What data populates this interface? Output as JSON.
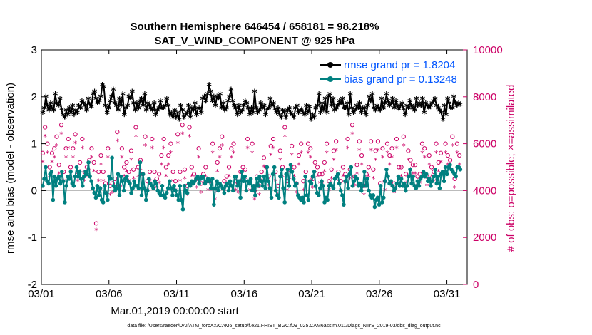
{
  "chart_data": {
    "type": "line",
    "title_line1": "Southern Hemisphere 646454 / 658181 = 98.218%",
    "title_line2": "SAT_V_WIND_COMPONENT @ 925 hPa",
    "xlabel": "Mar.01,2019 00:00:00 start",
    "ylabel": "rmse and bias (model - observation)",
    "ylabel_right": "# of obs: o=possible; ×=assimilated",
    "xlim": [
      0,
      31.5
    ],
    "ylim": [
      -2,
      3
    ],
    "ylim_right": [
      0,
      10000
    ],
    "x_ticks": [
      {
        "v": 0,
        "label": "03/01"
      },
      {
        "v": 5,
        "label": "03/06"
      },
      {
        "v": 10,
        "label": "03/11"
      },
      {
        "v": 15,
        "label": "03/16"
      },
      {
        "v": 20,
        "label": "03/21"
      },
      {
        "v": 25,
        "label": "03/26"
      },
      {
        "v": 30,
        "label": "03/31"
      }
    ],
    "y_ticks": [
      "-2",
      "-1",
      "0",
      "1",
      "2",
      "3"
    ],
    "y_right_ticks": [
      "0",
      "2000",
      "4000",
      "6000",
      "8000",
      "10000"
    ],
    "footer": "data file: /Users/raeder/DAI/ATM_forcXX/CAM6_setup/f.e21.FHIST_BGC.f09_025.CAM6assim.011/Diags_NTrS_2019-03/obs_diag_output.nc",
    "colors": {
      "rmse": "#000000",
      "bias": "#008080",
      "counts": "#cc0066",
      "legend_text": "#0055ff",
      "zero_line": "#bbbbbb"
    },
    "series": [
      {
        "name": "rmse grand pr = 1.8204",
        "values": [
          1.65,
          1.75,
          2.0,
          1.8,
          1.7,
          1.85,
          1.75,
          1.7,
          2.05,
          1.85,
          1.8,
          1.95,
          1.72,
          1.6,
          1.55,
          1.7,
          1.6,
          1.75,
          1.65,
          1.8,
          1.6,
          1.7,
          1.65,
          1.8,
          1.75,
          1.9,
          1.85,
          1.8,
          1.7,
          1.95,
          1.82,
          1.78,
          2.05,
          2.1,
          1.95,
          1.85,
          1.9,
          2.0,
          2.25,
          2.2,
          1.8,
          1.65,
          1.75,
          1.9,
          2.0,
          2.15,
          1.85,
          1.8,
          1.7,
          1.95,
          1.8,
          2.05,
          1.6,
          1.75,
          1.8,
          2.0,
          1.95,
          2.1,
          1.85,
          1.7,
          1.85,
          1.75,
          1.9,
          1.95,
          1.8,
          2.05,
          1.7,
          1.85,
          1.8,
          1.75,
          1.7,
          1.85,
          1.6,
          1.7,
          1.75,
          1.9,
          1.75,
          1.75,
          1.8,
          1.95,
          1.8,
          1.6,
          1.65,
          1.55,
          1.7,
          1.55,
          1.65,
          1.5,
          1.8,
          1.7,
          1.55,
          1.6,
          1.65,
          1.8,
          1.55,
          1.75,
          1.7,
          1.85,
          1.6,
          1.75,
          1.75,
          1.65,
          1.95,
          2.0,
          1.9,
          2.05,
          2.25,
          2.1,
          1.9,
          2.0,
          1.8,
          2.0,
          1.95,
          2.05,
          1.75,
          1.85,
          1.7,
          1.75,
          1.9,
          2.0,
          2.15,
          1.9,
          1.8,
          1.75,
          1.6,
          1.8,
          1.65,
          1.7,
          1.8,
          1.9,
          1.85,
          1.75,
          1.6,
          1.75,
          1.65,
          2.1,
          1.75,
          1.65,
          1.7,
          1.85,
          1.75,
          1.8,
          1.6,
          1.72,
          1.75,
          1.95,
          1.8,
          1.85,
          1.72,
          1.65,
          1.75,
          1.6,
          1.55,
          1.7,
          1.65,
          1.55,
          1.7,
          1.75,
          1.65,
          1.6,
          1.55,
          1.75,
          1.8,
          1.65,
          1.7,
          1.72,
          1.65,
          1.6,
          1.8,
          1.65,
          1.78,
          1.5,
          1.6,
          1.55,
          1.75,
          1.8,
          2.05,
          1.65,
          1.85,
          1.7,
          1.95,
          1.65,
          2.0,
          2.05,
          1.8,
          1.95,
          1.7,
          1.75,
          1.8,
          1.9,
          1.85,
          1.95,
          1.75,
          1.75,
          1.85,
          1.6,
          2.05,
          1.75,
          1.65,
          1.7,
          1.8,
          1.75,
          1.85,
          1.65,
          1.75,
          1.75,
          1.6,
          1.8,
          2.0,
          1.9,
          2.05,
          1.75,
          1.7,
          1.8,
          1.75,
          1.7,
          1.95,
          1.75,
          1.85,
          2.05,
          1.9,
          1.8,
          1.85,
          1.95,
          1.75,
          1.9,
          1.8,
          1.72,
          1.8,
          1.85,
          1.72,
          1.6,
          1.8,
          1.75,
          1.9,
          1.8,
          1.75,
          1.7,
          1.95,
          1.8,
          1.85,
          1.8,
          1.95,
          1.65,
          1.85,
          1.8,
          1.75,
          1.8,
          1.85,
          1.9,
          1.95,
          1.8,
          1.75,
          1.7,
          1.65,
          1.5,
          1.8,
          1.6,
          1.95,
          1.85,
          1.75,
          1.75,
          2.0,
          1.85,
          1.8,
          1.85,
          1.82
        ]
      },
      {
        "name": "bias grand pr = 0.13248",
        "values": [
          0.1,
          0.25,
          0.5,
          0.2,
          0.15,
          0.35,
          0.4,
          -0.2,
          0.3,
          0.1,
          0.25,
          0.3,
          0.15,
          0.4,
          0.2,
          -0.25,
          0.1,
          0.3,
          0.25,
          0.4,
          0.15,
          0.1,
          0.3,
          0.5,
          0.3,
          0.4,
          0.25,
          0.1,
          0.3,
          0.4,
          0.35,
          0.6,
          0.3,
          0.2,
          0.05,
          -0.05,
          -0.15,
          0.1,
          -0.1,
          0.05,
          -0.2,
          -0.25,
          0.1,
          -0.05,
          -0.2,
          0.3,
          0.25,
          0.7,
          0.1,
          0.0,
          0.05,
          0.35,
          -0.1,
          0.3,
          0.2,
          0.0,
          0.25,
          0.3,
          0.2,
          0.15,
          -0.05,
          0.05,
          0.2,
          0.1,
          0.1,
          0.05,
          0.6,
          -0.1,
          0.35,
          0.05,
          -0.2,
          0.0,
          0.25,
          0.15,
          0.1,
          0.05,
          0.2,
          0.15,
          0.0,
          -0.05,
          -0.1,
          0.1,
          -0.1,
          -0.15,
          -0.05,
          0.05,
          0.2,
          0.05,
          -0.1,
          0.1,
          0.0,
          -0.1,
          -0.2,
          0.1,
          -0.2,
          -0.4,
          0.1,
          0.0,
          -0.05,
          0.15,
          0.1,
          0.2,
          0.15,
          0.2,
          0.25,
          0.3,
          0.15,
          0.25,
          0.3,
          0.3,
          0.15,
          0.2,
          0.25,
          0.2,
          0.05,
          0.25,
          -0.3,
          0.05,
          0.2,
          0.0,
          0.15,
          0.1,
          0.05,
          -0.05,
          0.1,
          0.15,
          0.0,
          0.2,
          0.1,
          0.0,
          0.3,
          0.3,
          0.1,
          0.2,
          -0.15,
          0.4,
          0.2,
          0.3,
          0.0,
          0.2,
          0.15,
          0.25,
          0.0,
          0.1,
          -0.1,
          0.25,
          0.1,
          0.3,
          0.2,
          0.1,
          0.3,
          0.05,
          0.5,
          0.2,
          0.05,
          -0.15,
          0.35,
          0.5,
          0.0,
          -0.1,
          -0.15,
          0.3,
          0.45,
          0.05,
          -0.25,
          0.35,
          0.45,
          0.1,
          0.55,
          0.4,
          0.25,
          0.1,
          0.15,
          -0.1,
          -0.15,
          -0.2,
          -0.15,
          -0.25,
          0.3,
          -0.1,
          -0.2,
          0.2,
          0.15,
          0.3,
          0.4,
          0.1,
          -0.05,
          -0.1,
          0.05,
          0.2,
          0.1,
          -0.25,
          -0.15,
          -0.2,
          0.1,
          0.15,
          0.1,
          0.05,
          0.25,
          0.3,
          0.35,
          0.15,
          0.0,
          -0.1,
          -0.3,
          0.2,
          0.3,
          0.05,
          0.35,
          0.5,
          0.1,
          0.2,
          0.3,
          0.25,
          0.1,
          0.15,
          0.0,
          0.1,
          0.4,
          0.1,
          0.25,
          0.0,
          -0.1,
          -0.15,
          -0.1,
          -0.35,
          -0.2,
          -0.15,
          -0.3,
          0.1,
          -0.25,
          -0.15,
          0.2,
          0.45,
          0.3,
          0.15,
          0.2,
          0.1,
          0.0,
          0.05,
          0.15,
          0.3,
          0.1,
          0.25,
          0.1,
          0.15,
          0.0,
          0.1,
          0.3,
          0.45,
          0.15,
          0.3,
          0.1,
          0.05,
          0.2,
          0.1,
          0.25,
          0.3,
          0.4,
          0.3,
          0.35,
          0.2,
          0.25,
          0.1,
          0.2,
          0.3,
          0.45,
          0.15,
          0.3,
          0.05,
          0.35,
          0.4,
          0.2,
          0.5,
          0.35,
          0.5,
          0.55,
          0.45,
          0.4,
          0.35,
          0.3,
          0.5,
          0.5,
          0.45
        ]
      }
    ],
    "obs_possible": [
      5600,
      6700,
      6000,
      5000,
      5600,
      5800,
      6300,
      5100,
      6800,
      4800,
      5800,
      6200,
      5000,
      5800,
      6400,
      4800,
      5200,
      6200,
      4800,
      5000,
      5300,
      5800,
      5200,
      2600,
      4800,
      5500,
      4800,
      4300,
      5800,
      4200,
      4300,
      4500,
      6500,
      4200,
      5800,
      5000,
      5200,
      4800,
      5700,
      4900,
      6700,
      5000,
      5300,
      4700,
      6300,
      4400,
      4800,
      6200,
      4800,
      4500,
      4700,
      5500,
      6200,
      5000,
      5500,
      6000,
      4800,
      4400,
      6400,
      4800,
      6800,
      4900,
      4200,
      6700,
      5000,
      4700,
      4500,
      5800,
      4300,
      4700,
      5000,
      4400,
      4400,
      6000,
      4000,
      5200,
      5800,
      6300,
      4400,
      4600,
      5000,
      5800,
      6000,
      4400,
      4300,
      4800,
      5000,
      4900,
      6200,
      4400,
      6000,
      4000,
      4600,
      4200,
      4800,
      5400,
      5000,
      4600,
      5900,
      6200,
      4800,
      4200,
      5700,
      5000,
      6700,
      4400,
      4900,
      5900,
      5000,
      4300,
      5500,
      6000,
      4400,
      4800,
      6000,
      5800,
      4500,
      5200,
      5000,
      4700,
      4700,
      5200,
      6000,
      4400,
      4900,
      5700,
      6100,
      4800,
      4400,
      5000,
      4700,
      6200,
      4900,
      6800,
      4600,
      5100,
      6100,
      5500,
      4200,
      4700,
      5000,
      6100,
      4900,
      5700,
      6100,
      4300,
      5800,
      4400,
      6000,
      5500,
      5800,
      4300,
      6200,
      5000,
      5000,
      6300,
      4700,
      5700,
      5300,
      5100,
      5100,
      4600,
      4700,
      6000,
      5800,
      4600,
      5500,
      5000,
      4800,
      6000,
      5200,
      5600,
      4800,
      6000,
      5500,
      5300,
      6300,
      4500,
      6000,
      5500
    ],
    "obs_assimilated": [
      5500,
      6600,
      5900,
      4900,
      5500,
      5700,
      6200,
      5000,
      6700,
      4700,
      5700,
      6100,
      4900,
      5700,
      6300,
      4700,
      5100,
      6100,
      4700,
      4900,
      5200,
      5700,
      5100,
      2600,
      4700,
      5400,
      4700,
      4200,
      5700,
      4100,
      4200,
      4400,
      6400,
      4100,
      5700,
      4900,
      5100,
      4700,
      5600,
      4800,
      6600,
      4900,
      5200,
      4600,
      6200,
      4300,
      4700,
      6100,
      4700,
      4400,
      4600,
      5400,
      6100,
      4900,
      5400,
      5900,
      4700,
      4300,
      6300,
      4700,
      6700,
      4800,
      4100,
      6600,
      4900,
      4600,
      4400,
      5700,
      4200,
      4600,
      4900,
      4300,
      4300,
      5900,
      3900,
      5100,
      5700,
      6200,
      4300,
      4500,
      4900,
      5700,
      5900,
      4300,
      4200,
      4700,
      4900,
      4800,
      6100,
      4300,
      5900,
      3900,
      4500,
      4100,
      4700,
      5300,
      4900,
      4500,
      5800,
      6100,
      4700,
      4100,
      5600,
      4900,
      6600,
      4300,
      4800,
      5800,
      4900,
      4200,
      5400,
      5900,
      4300,
      4700,
      5900,
      5700,
      4400,
      5100,
      4900,
      4600,
      4600,
      5100,
      5900,
      4300,
      4800,
      5600,
      6000,
      4700,
      4300,
      4900,
      4600,
      6100,
      4800,
      6700,
      4500,
      5000,
      6000,
      5400,
      4100,
      4600,
      4900,
      6000,
      4800,
      5600,
      6000,
      4200,
      5700,
      4300,
      5900,
      5400,
      5700,
      4200,
      6100,
      4900,
      4900,
      6200,
      4600,
      5600,
      5200,
      5000,
      5000,
      4500,
      4600,
      5900,
      5700,
      4500,
      5400,
      4900,
      4700,
      5900,
      5100,
      5500,
      4700,
      5900,
      5400,
      5200,
      6200,
      4400,
      5900,
      5400
    ]
  }
}
